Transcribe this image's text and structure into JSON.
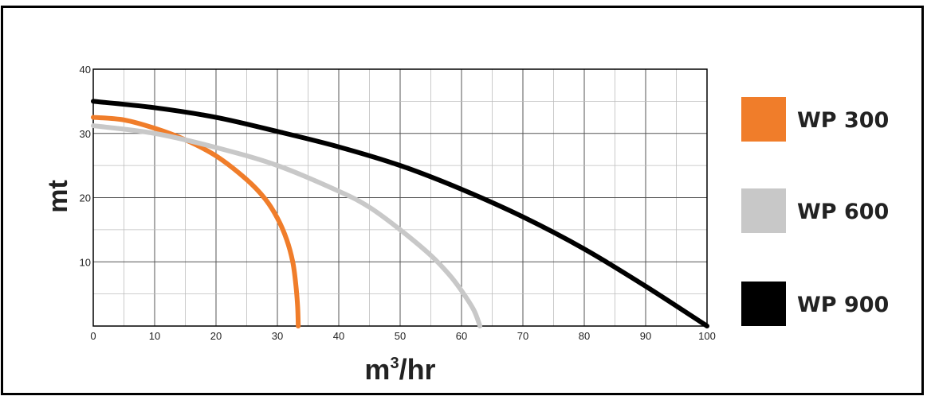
{
  "chart_data": {
    "type": "line",
    "xlabel_base": "m",
    "xlabel_sup": "3",
    "xlabel_rest": "/hr",
    "ylabel": "mt",
    "xlim": [
      0,
      100
    ],
    "ylim": [
      0,
      40
    ],
    "x_ticks": [
      0,
      10,
      20,
      30,
      40,
      50,
      60,
      70,
      80,
      90,
      100
    ],
    "y_ticks": [
      10,
      20,
      30,
      40
    ],
    "grid": true,
    "legend_position": "right",
    "series": [
      {
        "name": "WP 300",
        "color": "#f07d2a",
        "points": [
          [
            0,
            32.5
          ],
          [
            5,
            32.1
          ],
          [
            10,
            30.8
          ],
          [
            15,
            29.0
          ],
          [
            20,
            26.5
          ],
          [
            25,
            22.8
          ],
          [
            28,
            19.8
          ],
          [
            30,
            16.8
          ],
          [
            31.5,
            13.5
          ],
          [
            32.5,
            10.0
          ],
          [
            33.0,
            6.5
          ],
          [
            33.3,
            3.0
          ],
          [
            33.4,
            0
          ]
        ]
      },
      {
        "name": "WP 600",
        "color": "#c8c8c8",
        "points": [
          [
            0,
            31.2
          ],
          [
            10,
            30.0
          ],
          [
            20,
            27.8
          ],
          [
            30,
            25.0
          ],
          [
            40,
            21.0
          ],
          [
            45,
            18.5
          ],
          [
            50,
            15.0
          ],
          [
            55,
            11.0
          ],
          [
            58,
            8.0
          ],
          [
            60,
            5.5
          ],
          [
            62,
            2.5
          ],
          [
            63,
            0
          ]
        ]
      },
      {
        "name": "WP 900",
        "color": "#000000",
        "points": [
          [
            0,
            35.0
          ],
          [
            10,
            34.0
          ],
          [
            20,
            32.5
          ],
          [
            30,
            30.3
          ],
          [
            40,
            27.9
          ],
          [
            50,
            25.0
          ],
          [
            60,
            21.3
          ],
          [
            70,
            17.0
          ],
          [
            80,
            12.0
          ],
          [
            90,
            6.2
          ],
          [
            100,
            0
          ]
        ]
      }
    ]
  }
}
